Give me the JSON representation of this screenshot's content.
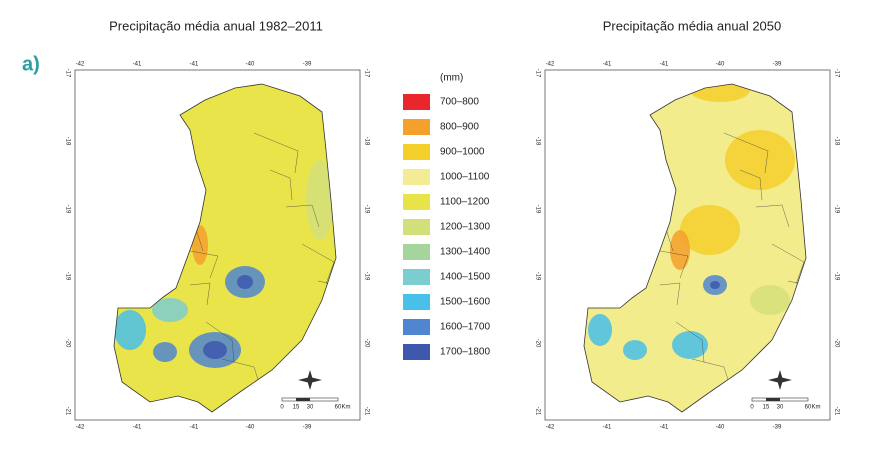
{
  "panel_label": "a)",
  "maps": [
    {
      "title": "Precipitação média anual 1982–2011",
      "xticks": [
        "-42",
        "-41",
        "-41",
        "-40",
        "-39"
      ],
      "yticks": [
        "-17",
        "-18",
        "-19",
        "-19",
        "-20",
        "-21"
      ],
      "scale": [
        "0",
        "15",
        "30",
        "60",
        "Km"
      ]
    },
    {
      "title": "Precipitação média anual 2050",
      "xticks": [
        "-42",
        "-41",
        "-41",
        "-40",
        "-39"
      ],
      "yticks": [
        "-17",
        "-18",
        "-19",
        "-19",
        "-20",
        "-21"
      ],
      "scale": [
        "0",
        "15",
        "30",
        "60",
        "Km"
      ]
    }
  ],
  "legend": {
    "unit": "(mm)",
    "items": [
      {
        "label": "700–800",
        "color": "#e8262b"
      },
      {
        "label": "800–900",
        "color": "#f4a02c"
      },
      {
        "label": "900–1000",
        "color": "#f5cf2c"
      },
      {
        "label": "1000–1100",
        "color": "#f4ec94"
      },
      {
        "label": "1100–1200",
        "color": "#e9e34a"
      },
      {
        "label": "1200–1300",
        "color": "#d3e07a"
      },
      {
        "label": "1300–1400",
        "color": "#a5d49c"
      },
      {
        "label": "1400–1500",
        "color": "#7ccdd0"
      },
      {
        "label": "1500–1600",
        "color": "#48c0e8"
      },
      {
        "label": "1600–1700",
        "color": "#4f86cf"
      },
      {
        "label": "1700–1800",
        "color": "#3e58ad"
      }
    ]
  }
}
